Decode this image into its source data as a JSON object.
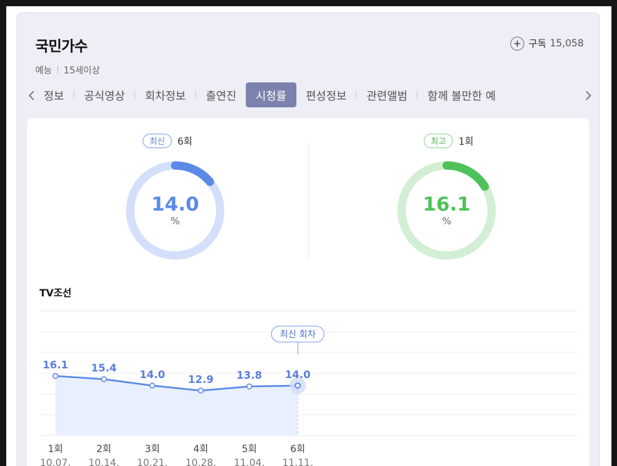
{
  "program": {
    "title": "국민가수",
    "genre": "예능",
    "rating": "15세이상"
  },
  "subscribe": {
    "label": "구독",
    "count": "15,058",
    "icon": "plus-circle-icon"
  },
  "tabs": [
    {
      "label": "정보",
      "active": false
    },
    {
      "label": "공식영상",
      "active": false
    },
    {
      "label": "회차정보",
      "active": false
    },
    {
      "label": "출연진",
      "active": false
    },
    {
      "label": "시청률",
      "active": true
    },
    {
      "label": "편성정보",
      "active": false
    },
    {
      "label": "관련앨범",
      "active": false
    },
    {
      "label": "함께 볼만한 예",
      "active": false
    }
  ],
  "latest": {
    "badge": "최신",
    "episode": "6회",
    "value": "14.0",
    "unit": "%",
    "fraction": 0.14
  },
  "best": {
    "badge": "최고",
    "episode": "1회",
    "value": "16.1",
    "unit": "%",
    "fraction": 0.161
  },
  "channel": "TV조선",
  "colors": {
    "accent": "#5b8ae6",
    "best": "#4fc15a",
    "tab_active": "#7b82ad"
  },
  "chart_data": {
    "type": "line",
    "categories": [
      "1회",
      "2회",
      "3회",
      "4회",
      "5회",
      "6회"
    ],
    "dates": [
      "10.07.",
      "10.14.",
      "10.21.",
      "10.28.",
      "11.04.",
      "11.11."
    ],
    "values": [
      16.1,
      15.4,
      14.0,
      12.9,
      13.8,
      14.0
    ],
    "value_labels": [
      "16.1",
      "15.4",
      "14.0",
      "12.9",
      "13.8",
      "14.0"
    ],
    "annotation": "최신 회차",
    "grid": true,
    "title": "",
    "xlabel": "",
    "ylabel": ""
  }
}
